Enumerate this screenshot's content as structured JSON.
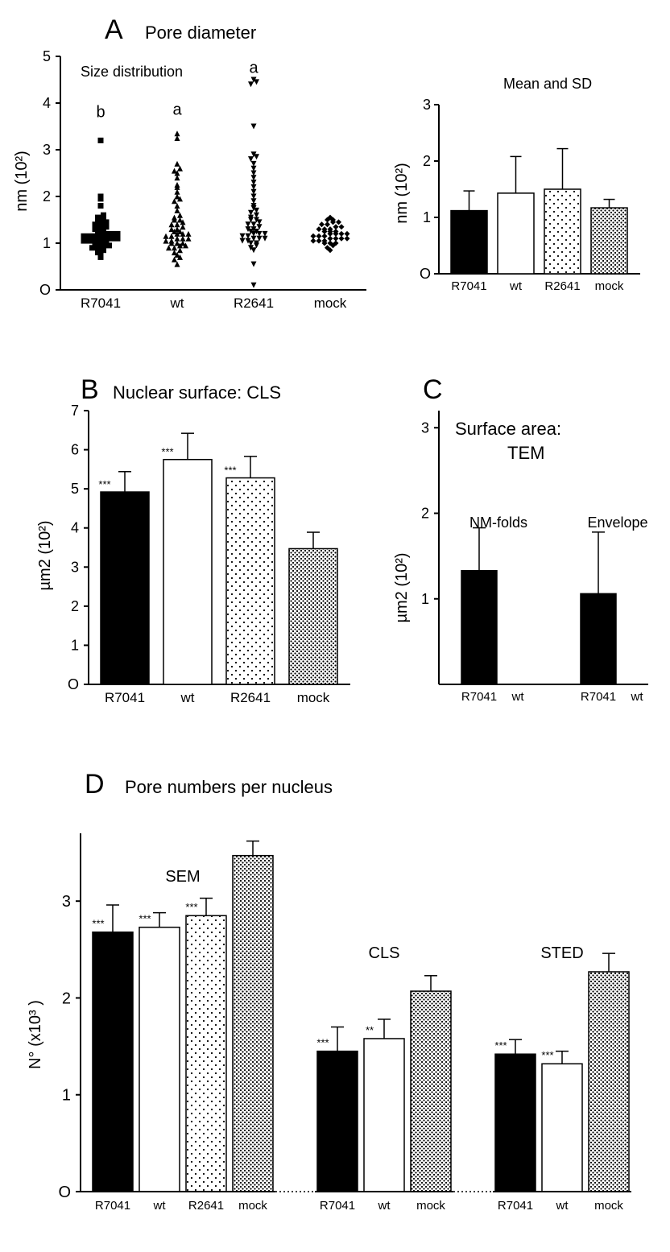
{
  "colors": {
    "background": "#ffffff",
    "ink": "#000000",
    "fill_black": "#000000",
    "fill_white": "#ffffff",
    "stroke": "#000000",
    "dot_pattern_dark": "#000000",
    "dot_pattern_light": "#ffffff"
  },
  "panelA": {
    "label": "A",
    "title": "Pore diameter",
    "left": {
      "subtitle": "Size distribution",
      "ylabel": "nm (10²)",
      "ylim": [
        0,
        5
      ],
      "yticks": [
        0,
        1,
        2,
        3,
        4,
        5
      ],
      "categories": [
        "R7041",
        "wt",
        "R2641",
        "mock"
      ],
      "annotations": [
        "b",
        "a",
        "a",
        ""
      ],
      "markers": [
        "square",
        "triangle-up",
        "triangle-down",
        "diamond"
      ],
      "scatter": {
        "R7041": [
          0.7,
          0.75,
          0.8,
          0.85,
          0.9,
          0.9,
          0.95,
          0.95,
          1.0,
          1.0,
          1.0,
          1.05,
          1.05,
          1.05,
          1.1,
          1.1,
          1.1,
          1.1,
          1.15,
          1.15,
          1.15,
          1.2,
          1.2,
          1.2,
          1.2,
          1.25,
          1.25,
          1.3,
          1.3,
          1.35,
          1.4,
          1.4,
          1.45,
          1.5,
          1.5,
          1.55,
          1.6,
          1.8,
          1.95,
          2.0,
          3.2
        ],
        "wt": [
          0.55,
          0.65,
          0.7,
          0.75,
          0.8,
          0.85,
          0.9,
          0.9,
          0.95,
          0.95,
          1.0,
          1.0,
          1.0,
          1.05,
          1.05,
          1.1,
          1.1,
          1.1,
          1.15,
          1.15,
          1.2,
          1.2,
          1.2,
          1.25,
          1.25,
          1.3,
          1.3,
          1.35,
          1.4,
          1.4,
          1.45,
          1.5,
          1.5,
          1.55,
          1.6,
          1.7,
          1.8,
          1.9,
          1.95,
          2.0,
          2.1,
          2.2,
          2.25,
          2.4,
          2.5,
          2.55,
          2.6,
          2.7,
          3.25,
          3.35
        ],
        "R2641": [
          0.1,
          0.55,
          0.85,
          0.9,
          0.95,
          1.0,
          1.0,
          1.05,
          1.05,
          1.1,
          1.1,
          1.1,
          1.15,
          1.15,
          1.2,
          1.2,
          1.2,
          1.25,
          1.25,
          1.3,
          1.3,
          1.35,
          1.4,
          1.4,
          1.45,
          1.5,
          1.5,
          1.55,
          1.6,
          1.65,
          1.7,
          1.75,
          1.8,
          1.9,
          2.0,
          2.1,
          2.2,
          2.3,
          2.4,
          2.5,
          2.6,
          2.7,
          2.8,
          2.85,
          2.9,
          3.5,
          4.4,
          4.45,
          4.5
        ],
        "mock": [
          0.85,
          0.9,
          0.95,
          1.0,
          1.0,
          1.0,
          1.05,
          1.05,
          1.05,
          1.1,
          1.1,
          1.1,
          1.1,
          1.15,
          1.15,
          1.15,
          1.2,
          1.2,
          1.2,
          1.2,
          1.25,
          1.25,
          1.25,
          1.3,
          1.3,
          1.3,
          1.35,
          1.35,
          1.4,
          1.4,
          1.45,
          1.45,
          1.5,
          1.5,
          1.55
        ]
      }
    },
    "right": {
      "subtitle": "Mean and SD",
      "ylabel": "nm (10²)",
      "ylim": [
        0,
        3
      ],
      "yticks": [
        0,
        1,
        2,
        3
      ],
      "categories": [
        "R7041",
        "wt",
        "R2641",
        "mock"
      ],
      "values": [
        1.12,
        1.43,
        1.5,
        1.17
      ],
      "errors": [
        0.35,
        0.65,
        0.72,
        0.15
      ],
      "fills": [
        "black",
        "white",
        "dots-sparse",
        "dots-dense"
      ]
    }
  },
  "panelB": {
    "label": "B",
    "title": "Nuclear surface: CLS",
    "ylabel": "µm2 (10²)",
    "ylim": [
      0,
      7
    ],
    "yticks": [
      0,
      1,
      2,
      3,
      4,
      5,
      6,
      7
    ],
    "categories": [
      "R7041",
      "wt",
      "R2641",
      "mock"
    ],
    "values": [
      4.92,
      5.75,
      5.28,
      3.47
    ],
    "errors": [
      0.52,
      0.67,
      0.55,
      0.42
    ],
    "significance": [
      "***",
      "***",
      "***",
      ""
    ],
    "fills": [
      "black",
      "white",
      "dots-sparse",
      "dots-dense"
    ]
  },
  "panelC": {
    "label": "C",
    "title": "Surface area:",
    "title2": "TEM",
    "ylabel": "µm2 (10²)",
    "ylim": [
      0,
      3.2
    ],
    "yticks": [
      1,
      2,
      3
    ],
    "group_labels": [
      "NM-folds",
      "Envelope"
    ],
    "categories": [
      "R7041",
      "wt",
      "R7041",
      "wt"
    ],
    "values": [
      1.33,
      0,
      1.06,
      0
    ],
    "errors": [
      0.5,
      0,
      0.72,
      0
    ],
    "fills": [
      "black",
      "none",
      "black",
      "none"
    ]
  },
  "panelD": {
    "label": "D",
    "title": "Pore numbers per nucleus",
    "ylabel": "N° (x10³ )",
    "ylim": [
      0,
      3.7
    ],
    "yticks": [
      0,
      1,
      2,
      3
    ],
    "groups": [
      {
        "group_label": "SEM",
        "categories": [
          "R7041",
          "wt",
          "R2641",
          "mock"
        ],
        "values": [
          2.68,
          2.73,
          2.85,
          3.47
        ],
        "errors": [
          0.28,
          0.15,
          0.18,
          0.15
        ],
        "significance": [
          "***",
          "***",
          "***",
          ""
        ],
        "fills": [
          "black",
          "white",
          "dots-sparse",
          "dots-dense"
        ]
      },
      {
        "group_label": "CLS",
        "categories": [
          "R7041",
          "wt",
          "mock"
        ],
        "values": [
          1.45,
          1.58,
          2.07
        ],
        "errors": [
          0.25,
          0.2,
          0.16
        ],
        "significance": [
          "***",
          "**",
          ""
        ],
        "fills": [
          "black",
          "white",
          "dots-dense"
        ]
      },
      {
        "group_label": "STED",
        "categories": [
          "R7041",
          "wt",
          "mock"
        ],
        "values": [
          1.42,
          1.32,
          2.27
        ],
        "errors": [
          0.15,
          0.13,
          0.19
        ],
        "significance": [
          "***",
          "***",
          ""
        ],
        "fills": [
          "black",
          "white",
          "dots-dense"
        ]
      }
    ]
  }
}
